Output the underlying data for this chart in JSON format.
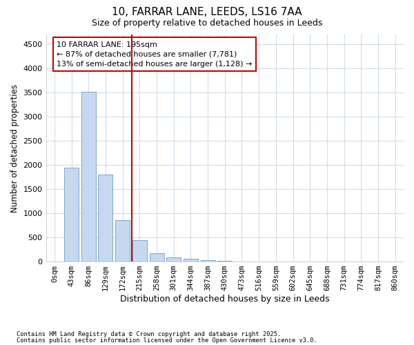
{
  "title_line1": "10, FARRAR LANE, LEEDS, LS16 7AA",
  "title_line2": "Size of property relative to detached houses in Leeds",
  "xlabel": "Distribution of detached houses by size in Leeds",
  "ylabel": "Number of detached properties",
  "bar_labels": [
    "0sqm",
    "43sqm",
    "86sqm",
    "129sqm",
    "172sqm",
    "215sqm",
    "258sqm",
    "301sqm",
    "344sqm",
    "387sqm",
    "430sqm",
    "473sqm",
    "516sqm",
    "559sqm",
    "602sqm",
    "645sqm",
    "688sqm",
    "731sqm",
    "774sqm",
    "817sqm",
    "860sqm"
  ],
  "bar_values": [
    0,
    1950,
    3510,
    1800,
    860,
    450,
    175,
    90,
    55,
    30,
    15,
    5,
    2,
    1,
    0,
    0,
    0,
    0,
    0,
    0,
    0
  ],
  "bar_color": "#c5d8f0",
  "bar_edge_color": "#7ba7cc",
  "vline_x": 4.535,
  "vline_color": "#cc0000",
  "annotation_text": "10 FARRAR LANE: 195sqm\n← 87% of detached houses are smaller (7,781)\n13% of semi-detached houses are larger (1,128) →",
  "annotation_box_color": "#cc0000",
  "ylim": [
    0,
    4700
  ],
  "yticks": [
    0,
    500,
    1000,
    1500,
    2000,
    2500,
    3000,
    3500,
    4000,
    4500
  ],
  "bg_color": "#ffffff",
  "plot_bg_color": "#ffffff",
  "grid_color": "#d0dce8",
  "footnote1": "Contains HM Land Registry data © Crown copyright and database right 2025.",
  "footnote2": "Contains public sector information licensed under the Open Government Licence v3.0."
}
